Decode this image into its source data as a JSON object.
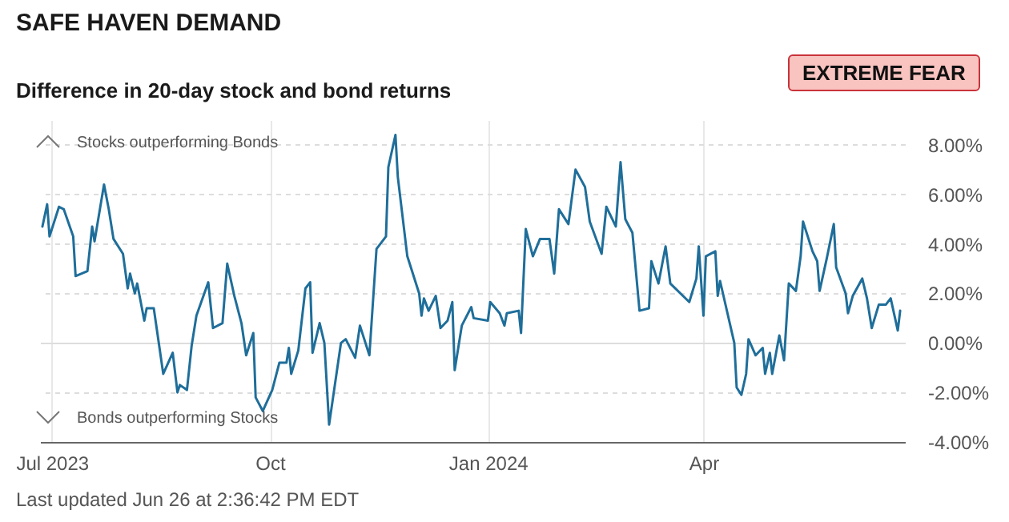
{
  "chart_data": {
    "type": "line",
    "title": "SAFE HAVEN DEMAND",
    "subtitle": "Difference in 20-day stock and bond returns",
    "annotations": [
      "Stocks outperforming Bonds",
      "Bonds outperforming Stocks",
      "EXTREME FEAR",
      "Last updated Jun 26 at 2:36:42 PM EDT"
    ],
    "x": [
      "2023-06-27",
      "2023-06-29",
      "2023-06-30",
      "2023-07-04",
      "2023-07-06",
      "2023-07-10",
      "2023-07-11",
      "2023-07-16",
      "2023-07-18",
      "2023-07-19",
      "2023-07-23",
      "2023-07-25",
      "2023-07-27",
      "2023-07-31",
      "2023-08-02",
      "2023-08-03",
      "2023-08-05",
      "2023-08-06",
      "2023-08-09",
      "2023-08-10",
      "2023-08-13",
      "2023-08-17",
      "2023-08-21",
      "2023-08-23",
      "2023-08-24",
      "2023-08-27",
      "2023-08-29",
      "2023-08-31",
      "2023-09-05",
      "2023-09-07",
      "2023-09-11",
      "2023-09-13",
      "2023-09-16",
      "2023-09-19",
      "2023-09-21",
      "2023-09-24",
      "2023-09-25",
      "2023-09-28",
      "2023-10-02",
      "2023-10-05",
      "2023-10-08",
      "2023-10-09",
      "2023-10-10",
      "2023-10-13",
      "2023-10-16",
      "2023-10-18",
      "2023-10-19",
      "2023-10-22",
      "2023-10-24",
      "2023-10-26",
      "2023-10-31",
      "2023-11-02",
      "2023-11-06",
      "2023-11-08",
      "2023-11-12",
      "2023-11-15",
      "2023-11-19",
      "2023-11-20",
      "2023-11-23",
      "2023-11-24",
      "2023-11-28",
      "2023-12-03",
      "2023-12-04",
      "2023-12-05",
      "2023-12-07",
      "2023-12-10",
      "2023-12-12",
      "2023-12-15",
      "2023-12-17",
      "2023-12-18",
      "2023-12-21",
      "2023-12-25",
      "2023-12-26",
      "2024-01-01",
      "2024-01-02",
      "2024-01-06",
      "2024-01-08",
      "2024-01-09",
      "2024-01-14",
      "2024-01-15",
      "2024-01-17",
      "2024-01-20",
      "2024-01-23",
      "2024-01-27",
      "2024-01-29",
      "2024-01-31",
      "2024-02-04",
      "2024-02-07",
      "2024-02-11",
      "2024-02-13",
      "2024-02-18",
      "2024-02-20",
      "2024-02-24",
      "2024-02-26",
      "2024-02-28",
      "2024-03-02",
      "2024-03-05",
      "2024-03-09",
      "2024-03-10",
      "2024-03-13",
      "2024-03-16",
      "2024-03-18",
      "2024-03-26",
      "2024-03-29",
      "2024-03-30",
      "2024-04-01",
      "2024-04-02",
      "2024-04-06",
      "2024-04-07",
      "2024-04-08",
      "2024-04-14",
      "2024-04-15",
      "2024-04-17",
      "2024-04-19",
      "2024-04-20",
      "2024-04-23",
      "2024-04-26",
      "2024-04-27",
      "2024-04-29",
      "2024-04-30",
      "2024-05-03",
      "2024-05-05",
      "2024-05-07",
      "2024-05-10",
      "2024-05-12",
      "2024-05-13",
      "2024-05-17",
      "2024-05-19",
      "2024-05-20",
      "2024-05-23",
      "2024-05-26",
      "2024-05-27",
      "2024-05-31",
      "2024-06-01",
      "2024-06-03",
      "2024-06-07",
      "2024-06-09",
      "2024-06-11",
      "2024-06-14",
      "2024-06-17",
      "2024-06-19",
      "2024-06-22",
      "2024-06-23"
    ],
    "series": [
      {
        "color": "#1f6e9a",
        "values": [
          4.7,
          5.6,
          4.3,
          5.5,
          5.4,
          4.3,
          2.7,
          2.9,
          4.7,
          4.1,
          6.4,
          5.4,
          4.2,
          3.6,
          2.2,
          2.8,
          2.0,
          2.4,
          0.9,
          1.4,
          1.4,
          -1.25,
          -0.4,
          -2.0,
          -1.7,
          -1.9,
          -0.1,
          1.1,
          2.45,
          0.6,
          0.8,
          3.2,
          1.9,
          0.8,
          -0.5,
          0.4,
          -2.2,
          -2.75,
          -1.9,
          -0.8,
          -0.8,
          -0.2,
          -1.25,
          -0.3,
          2.2,
          2.45,
          -0.4,
          0.8,
          0.0,
          -3.3,
          0.0,
          0.15,
          -0.6,
          0.7,
          -0.5,
          3.8,
          4.3,
          7.1,
          8.4,
          6.7,
          3.5,
          2.0,
          1.1,
          1.8,
          1.3,
          1.9,
          0.6,
          0.9,
          1.65,
          -1.1,
          0.7,
          1.45,
          1.0,
          0.9,
          1.65,
          1.2,
          0.7,
          1.2,
          1.3,
          0.4,
          4.6,
          3.5,
          4.2,
          4.2,
          2.8,
          5.4,
          4.8,
          7.0,
          6.3,
          4.9,
          3.6,
          5.5,
          4.7,
          7.3,
          5.0,
          4.45,
          1.3,
          1.4,
          3.3,
          2.4,
          3.9,
          2.4,
          1.65,
          2.6,
          3.9,
          1.1,
          3.5,
          3.7,
          1.9,
          2.5,
          0.0,
          -1.8,
          -2.1,
          -1.25,
          0.15,
          -0.5,
          -0.2,
          -1.25,
          -0.4,
          -1.25,
          0.3,
          -0.7,
          2.4,
          2.1,
          3.5,
          4.9,
          3.7,
          3.3,
          2.1,
          3.4,
          4.8,
          3.05,
          2.0,
          1.2,
          1.9,
          2.6,
          1.8,
          0.6,
          1.55,
          1.55,
          1.8,
          0.5,
          1.3
        ]
      }
    ],
    "xlim": [
      "2023-06-26",
      "2024-06-25"
    ],
    "xticks": [
      {
        "value": "2023-07-01",
        "label": "Jul 2023"
      },
      {
        "value": "2023-10-01",
        "label": "Oct"
      },
      {
        "value": "2024-01-01",
        "label": "Jan 2024"
      },
      {
        "value": "2024-04-01",
        "label": "Apr"
      }
    ],
    "ylim": [
      -4,
      9
    ],
    "yticks": [
      {
        "value": -4,
        "label": "-4.00%"
      },
      {
        "value": -2,
        "label": "-2.00%"
      },
      {
        "value": 0,
        "label": "0.00%"
      },
      {
        "value": 2,
        "label": "2.00%"
      },
      {
        "value": 4,
        "label": "4.00%"
      },
      {
        "value": 6,
        "label": "6.00%"
      },
      {
        "value": 8,
        "label": "8.00%"
      }
    ],
    "grid": true,
    "marker": "none",
    "line_style": "solid"
  }
}
